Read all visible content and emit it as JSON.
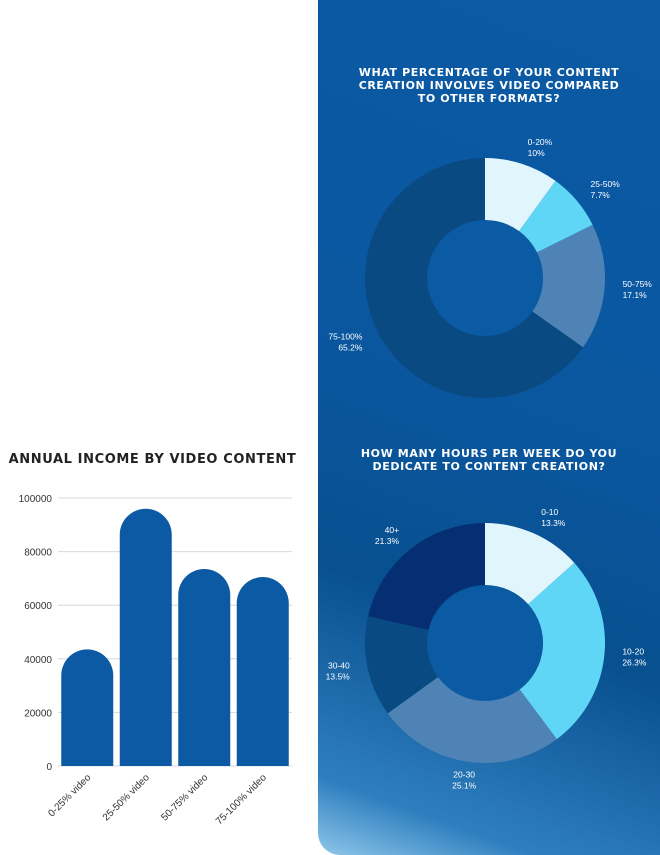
{
  "chart_data": [
    {
      "type": "bar",
      "title": "ANNUAL INCOME BY VIDEO CONTENT",
      "categories": [
        "0-25% video",
        "25-50% video",
        "50-75% video",
        "75-100% video"
      ],
      "values": [
        43500,
        96000,
        73500,
        70500
      ],
      "ylim": [
        0,
        100000
      ],
      "yticks": [
        "0",
        "20000",
        "40000",
        "60000",
        "80000",
        "100000"
      ],
      "grid": true,
      "color": "#0b5aa3"
    },
    {
      "type": "pie",
      "title_lines": [
        "WHAT PERCENTAGE OF YOUR CONTENT",
        "CREATION INVOLVES VIDEO COMPARED",
        "TO OTHER FORMATS?"
      ],
      "slices": [
        {
          "label": "0-20%",
          "pct": "10%",
          "value": 10,
          "color": "#e0f5fc"
        },
        {
          "label": "25-50%",
          "pct": "7.7%",
          "value": 7.7,
          "color": "#5fd6f6"
        },
        {
          "label": "50-75%",
          "pct": "17.1%",
          "value": 17.1,
          "color": "#4f83b6"
        },
        {
          "label": "75-100%",
          "pct": "65.2%",
          "value": 65.2,
          "color": "#0a4a83"
        }
      ]
    },
    {
      "type": "pie",
      "title_lines": [
        "HOW MANY HOURS PER WEEK DO YOU",
        "DEDICATE TO CONTENT CREATION?"
      ],
      "slices": [
        {
          "label": "0-10",
          "pct": "13.3%",
          "value": 13.3,
          "color": "#e0f5fc"
        },
        {
          "label": "10-20",
          "pct": "26.3%",
          "value": 26.3,
          "color": "#5fd6f6"
        },
        {
          "label": "20-30",
          "pct": "25.1%",
          "value": 25.1,
          "color": "#4f83b6"
        },
        {
          "label": "30-40",
          "pct": "13.5%",
          "value": 13.5,
          "color": "#0a4a83"
        },
        {
          "label": "40+",
          "pct": "21.3%",
          "value": 21.3,
          "color": "#062f73"
        }
      ]
    }
  ],
  "colors": {
    "panel": "#0b5aa4",
    "donut_hole": "#0b5aa4"
  }
}
